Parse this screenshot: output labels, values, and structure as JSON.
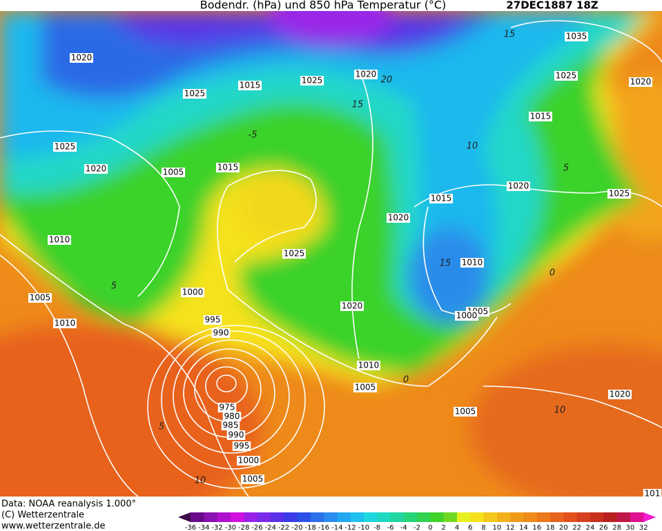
{
  "header": {
    "title": "Bodendr. (hPa) und 850 hPa Temperatur (°C)",
    "date": "27DEC1887 18Z"
  },
  "map": {
    "isobar_labels": [
      "1020",
      "1025",
      "1015",
      "1025",
      "1020",
      "1035",
      "1025",
      "1020",
      "1015",
      "1025",
      "1020",
      "1005",
      "1015",
      "1020",
      "1025",
      "1015",
      "1020",
      "1010",
      "1025",
      "1010",
      "1005",
      "1000",
      "1020",
      "1005",
      "1000",
      "1010",
      "995",
      "990",
      "1010",
      "1005",
      "1020",
      "1005",
      "975",
      "980",
      "985",
      "990",
      "995",
      "1000",
      "1005",
      "101"
    ],
    "temperature_labels": [
      "15",
      "20",
      "15",
      "10",
      "-5",
      "5",
      "15",
      "5",
      "5",
      "10",
      "0",
      "0",
      "10"
    ]
  },
  "footer": {
    "lines": [
      "Data: NOAA reanalysis 1.000°",
      "(C) Wetterzentrale",
      "www.wetterzentrale.de"
    ]
  },
  "colorbar": {
    "ticks": [
      -36,
      -34,
      -32,
      -30,
      -28,
      -26,
      -24,
      -22,
      -20,
      -18,
      -16,
      -14,
      -12,
      -10,
      -8,
      -6,
      -4,
      -2,
      0,
      2,
      4,
      6,
      8,
      10,
      12,
      14,
      16,
      18,
      20,
      22,
      24,
      26,
      28,
      30,
      32
    ]
  }
}
